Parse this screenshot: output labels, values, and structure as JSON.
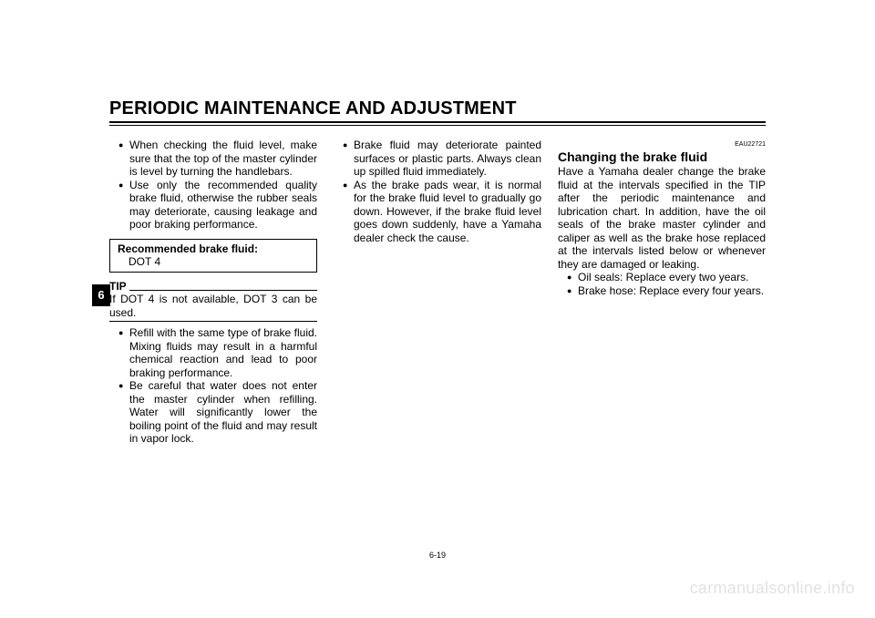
{
  "header": {
    "title": "PERIODIC MAINTENANCE AND ADJUSTMENT"
  },
  "side_tab": "6",
  "page_number": "6-19",
  "watermark": "carmanualsonline.info",
  "col1": {
    "bullets_a": [
      "When checking the fluid level, make sure that the top of the master cylinder is level by turning the handlebars.",
      "Use only the recommended quality brake fluid, otherwise the rubber seals may deteriorate, causing leakage and poor braking performance."
    ],
    "spec_label": "Recommended brake fluid:",
    "spec_value": "DOT 4",
    "tip_head": "TIP",
    "tip_body": "If DOT 4 is not available, DOT 3 can be used.",
    "bullets_b": [
      "Refill with the same type of brake fluid. Mixing fluids may result in a harmful chemical reaction and lead to poor braking performance.",
      "Be careful that water does not enter the master cylinder when refilling. Water will significantly lower the boiling point of the fluid and may result in vapor lock."
    ]
  },
  "col2": {
    "bullets": [
      "Brake fluid may deteriorate painted surfaces or plastic parts. Always clean up spilled fluid immediately.",
      "As the brake pads wear, it is normal for the brake fluid level to gradually go down. However, if the brake fluid level goes down suddenly, have a Yamaha dealer check the cause."
    ]
  },
  "col3": {
    "code_id": "EAU22721",
    "subhead": "Changing the brake fluid",
    "intro": "Have a Yamaha dealer change the brake fluid at the intervals specified in the TIP after the periodic maintenance and lubrication chart. In addition, have the oil seals of the brake master cylinder and caliper as well as the brake hose replaced at the intervals listed below or whenever they are damaged or leaking.",
    "bullets": [
      "Oil seals: Replace every two years.",
      "Brake hose: Replace every four years."
    ]
  }
}
